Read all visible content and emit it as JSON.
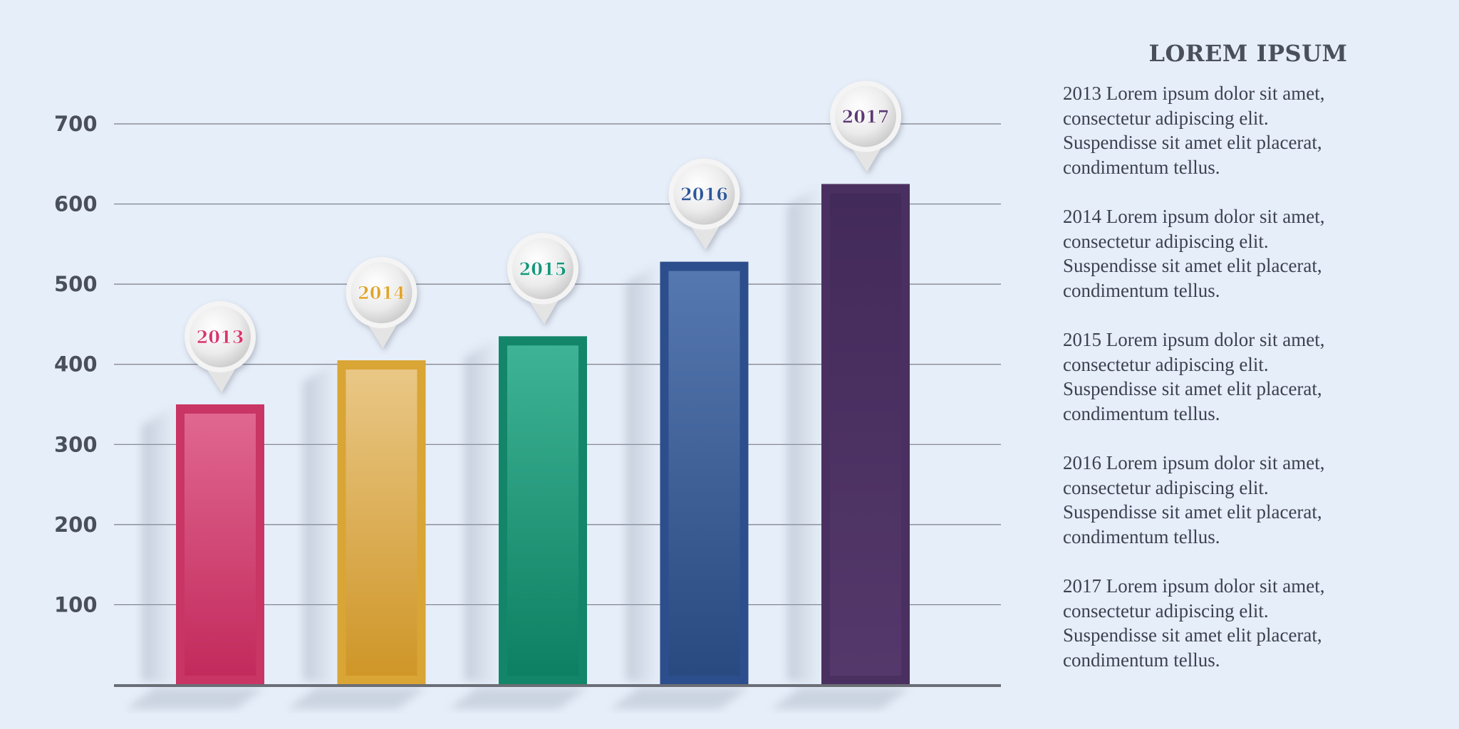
{
  "colors": {
    "background": "#e6eef9",
    "grid": "#7a7d85",
    "axis": "#6b6e75",
    "tick_text": "#4a4f5c"
  },
  "chart_data": {
    "type": "bar",
    "categories": [
      "2013",
      "2014",
      "2015",
      "2016",
      "2017"
    ],
    "values": [
      350,
      405,
      435,
      528,
      625
    ],
    "yticks": [
      100,
      200,
      300,
      400,
      500,
      600,
      700
    ],
    "ylim": [
      0,
      700
    ],
    "grid": true,
    "bar_colors": [
      {
        "outer": "#c93565",
        "inner_top": "#e06790",
        "inner_bottom": "#c22a5c",
        "label": "#d8356e"
      },
      {
        "outer": "#d9a535",
        "inner_top": "#e9c786",
        "inner_bottom": "#cf9628",
        "label": "#e0a42c"
      },
      {
        "outer": "#13866a",
        "inner_top": "#3fb395",
        "inner_bottom": "#0d7f62",
        "label": "#12977a"
      },
      {
        "outer": "#2d4e8c",
        "inner_top": "#5678b0",
        "inner_bottom": "#284a80",
        "label": "#2f5698"
      },
      {
        "outer": "#4a3060",
        "inner_top": "#422a5a",
        "inner_bottom": "#55386b",
        "label": "#5c3a75"
      }
    ]
  },
  "side_panel": {
    "title": "LOREM IPSUM",
    "entries": [
      {
        "lines": [
          "2013 Lorem ipsum dolor sit amet,",
          "consectetur adipiscing elit.",
          "Suspendisse sit amet elit placerat,",
          "condimentum tellus."
        ]
      },
      {
        "lines": [
          "2014 Lorem ipsum dolor sit amet,",
          "consectetur adipiscing elit.",
          "Suspendisse sit amet elit placerat,",
          "condimentum tellus."
        ]
      },
      {
        "lines": [
          "2015 Lorem ipsum dolor sit amet,",
          "consectetur adipiscing elit.",
          "Suspendisse sit amet elit placerat,",
          "condimentum tellus."
        ]
      },
      {
        "lines": [
          "2016 Lorem ipsum dolor sit amet,",
          "consectetur adipiscing elit.",
          "Suspendisse sit amet elit placerat,",
          "condimentum tellus."
        ]
      },
      {
        "lines": [
          "2017 Lorem ipsum dolor sit amet,",
          "consectetur adipiscing elit.",
          "Suspendisse sit amet elit placerat,",
          "condimentum tellus."
        ]
      }
    ]
  }
}
